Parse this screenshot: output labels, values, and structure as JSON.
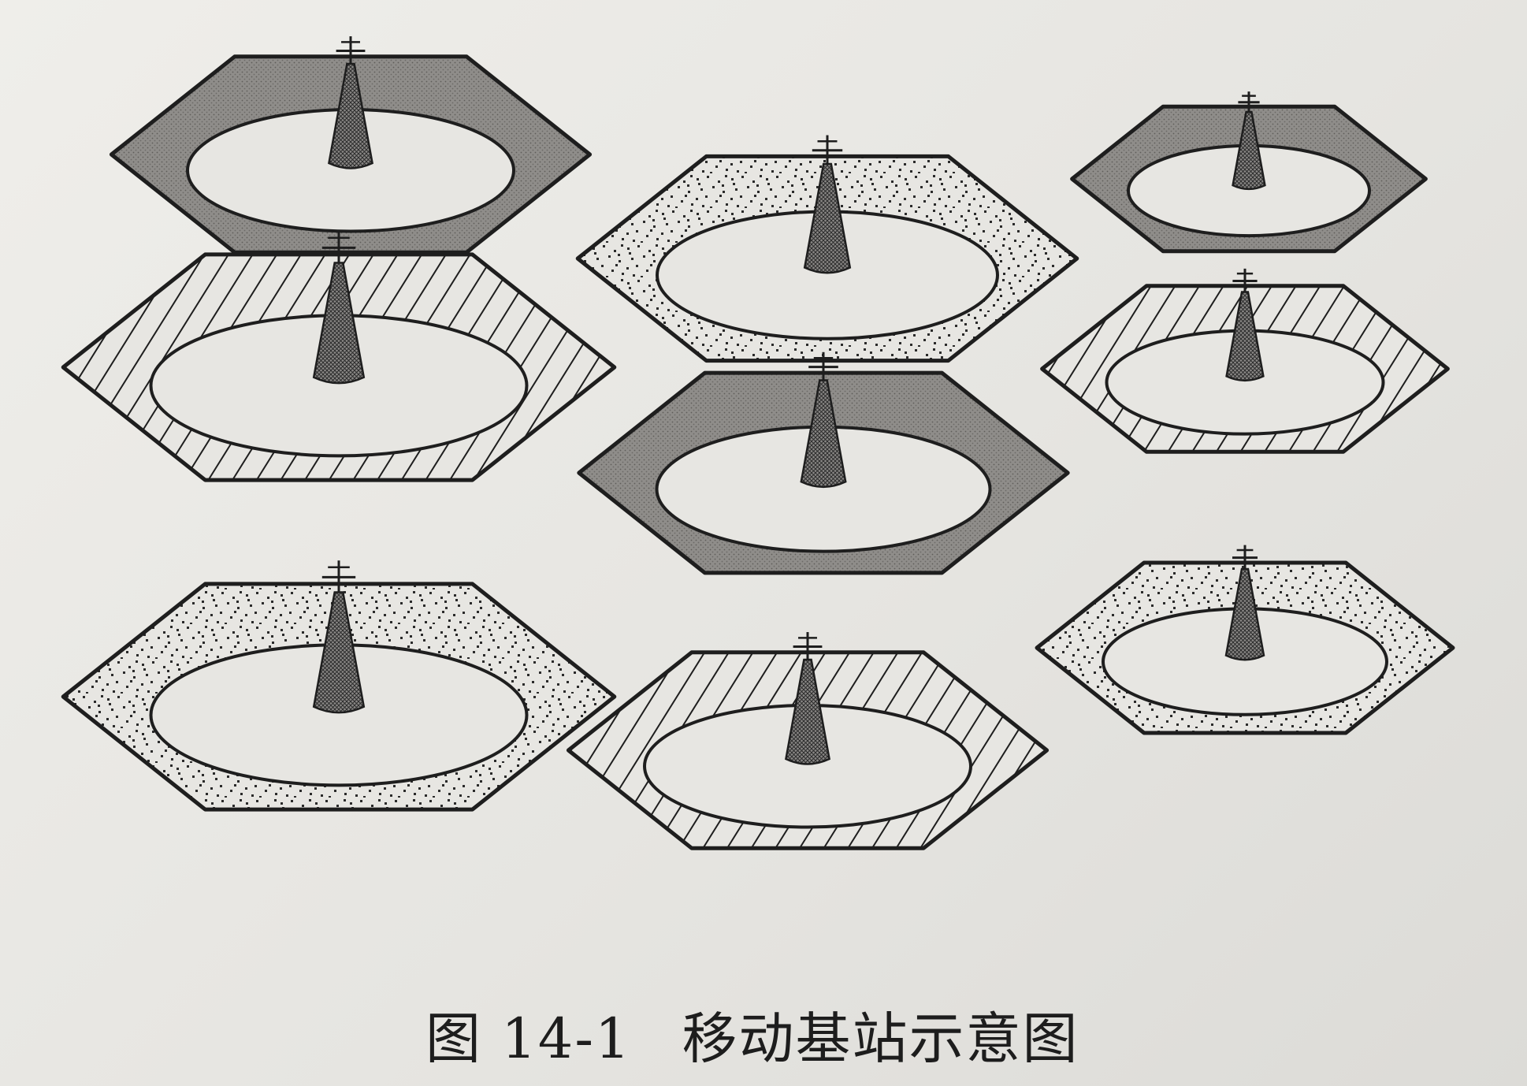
{
  "caption": {
    "figure_number": "图 14-1",
    "title": "移动基站示意图"
  },
  "cells": [
    {
      "id": "top-left",
      "pattern": "dark"
    },
    {
      "id": "top-center",
      "pattern": "dots"
    },
    {
      "id": "top-right",
      "pattern": "dark"
    },
    {
      "id": "middle-left",
      "pattern": "stripes"
    },
    {
      "id": "center",
      "pattern": "dark"
    },
    {
      "id": "middle-right",
      "pattern": "stripes"
    },
    {
      "id": "bottom-left",
      "pattern": "dots"
    },
    {
      "id": "bottom-center",
      "pattern": "stripes"
    },
    {
      "id": "bottom-right",
      "pattern": "dots"
    }
  ],
  "icons": {
    "tower": "antenna-tower-icon"
  },
  "colors": {
    "dark_fill": "#8f8d8a",
    "light_fill": "#e7e6e2",
    "line": "#1e1e1e"
  }
}
